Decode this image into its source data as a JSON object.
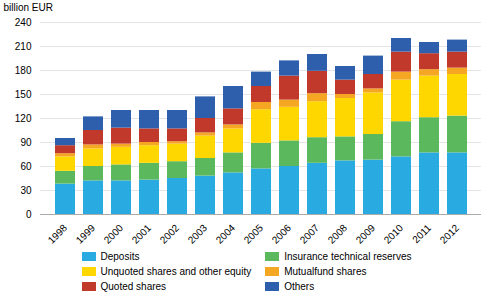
{
  "chart_data": {
    "type": "bar",
    "stacked": true,
    "ylabel": "billion EUR",
    "categories": [
      "1998",
      "1999",
      "2000",
      "2001",
      "2002",
      "2003",
      "2004",
      "2005",
      "2006",
      "2007",
      "2008",
      "2009",
      "2010",
      "2011",
      "2012"
    ],
    "series": [
      {
        "name": "Deposits",
        "color": "#29ABE2",
        "values": [
          38,
          42,
          42,
          43,
          45,
          48,
          52,
          57,
          60,
          64,
          67,
          68,
          72,
          77,
          77
        ]
      },
      {
        "name": "Insurance technical reserves",
        "color": "#5CB85C",
        "values": [
          16,
          18,
          20,
          21,
          21,
          22,
          25,
          32,
          32,
          32,
          30,
          32,
          44,
          44,
          46
        ]
      },
      {
        "name": "Unquoted shares and other equity",
        "color": "#FFD700",
        "values": [
          18,
          22,
          22,
          22,
          22,
          28,
          30,
          42,
          42,
          45,
          48,
          52,
          52,
          52,
          52
        ]
      },
      {
        "name": "Mutualfund shares",
        "color": "#F5A623",
        "values": [
          4,
          5,
          4,
          4,
          3,
          4,
          5,
          9,
          9,
          10,
          5,
          5,
          10,
          8,
          8
        ]
      },
      {
        "name": "Quoted shares",
        "color": "#C0392B",
        "values": [
          10,
          18,
          20,
          17,
          16,
          18,
          20,
          20,
          30,
          28,
          18,
          18,
          25,
          20,
          20
        ]
      },
      {
        "name": "Others",
        "color": "#2E5FAC",
        "values": [
          9,
          17,
          22,
          23,
          23,
          27,
          28,
          18,
          19,
          21,
          17,
          23,
          17,
          14,
          15
        ]
      }
    ],
    "ylim": [
      0,
      240
    ],
    "yticks": [
      0,
      30,
      60,
      90,
      120,
      150,
      180,
      210,
      240
    ],
    "grid": true,
    "legend": "bottom"
  }
}
